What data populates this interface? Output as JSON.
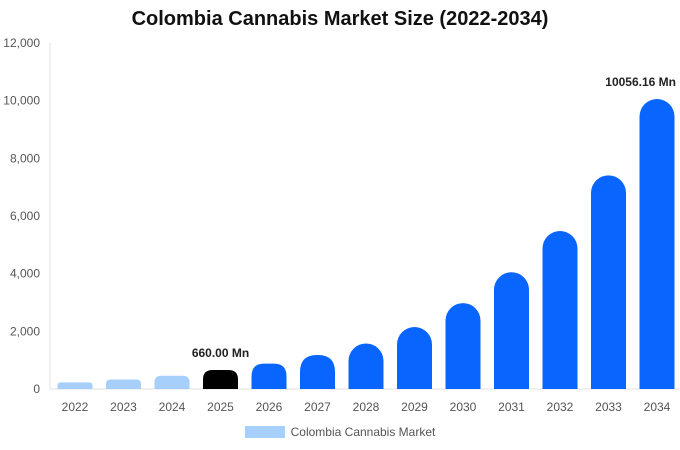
{
  "chart_data": {
    "type": "bar",
    "title": "Colombia Cannabis Market Size (2022-2034)",
    "categories": [
      "2022",
      "2023",
      "2024",
      "2025",
      "2026",
      "2027",
      "2028",
      "2029",
      "2030",
      "2031",
      "2032",
      "2033",
      "2034"
    ],
    "series": [
      {
        "name": "Colombia Cannabis Market",
        "values": [
          230,
          330,
          460,
          660,
          880,
          1180,
          1580,
          2150,
          2980,
          4050,
          5480,
          7410,
          10056.16
        ]
      }
    ],
    "ylim": [
      0,
      12000
    ],
    "yticks": [
      "0",
      "2,000",
      "4,000",
      "6,000",
      "8,000",
      "10,000",
      "12,000"
    ],
    "ytick_values": [
      0,
      2000,
      4000,
      6000,
      8000,
      10000,
      12000
    ],
    "data_labels": [
      {
        "category": "2025",
        "text": "660.00 Mn"
      },
      {
        "category": "2034",
        "text": "10056.16 Mn"
      }
    ],
    "colors": {
      "historical": "#a6cffb",
      "current": "#000000",
      "forecast": "#0866ff"
    },
    "legend_position": "bottom",
    "grid": false
  }
}
